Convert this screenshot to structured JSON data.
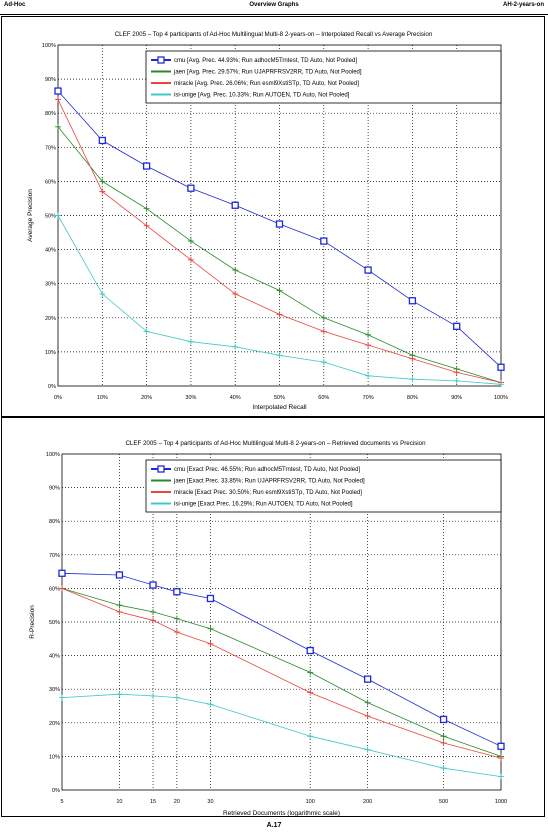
{
  "header": {
    "left": "Ad-Hoc",
    "center": "Overview Graphs",
    "right": "AH-2-years-on"
  },
  "footer": "A.17",
  "series_colors": {
    "cmu": "#1e2ad8",
    "jaen": "#2a8a2a",
    "miracle": "#e8463c",
    "isi-unige": "#40c8c8"
  },
  "chart_data": [
    {
      "type": "line",
      "title": "CLEF 2005 – Top 4 participants of Ad-Hoc Multilingual Multi-8 2-years-on – Interpolated Recall vs Average Precision",
      "xlabel": "Interpolated Recall",
      "ylabel": "Average Precision",
      "x_scale": "linear",
      "x": [
        0,
        10,
        20,
        30,
        40,
        50,
        60,
        70,
        80,
        90,
        100
      ],
      "x_ticks": [
        "0%",
        "10%",
        "20%",
        "30%",
        "40%",
        "50%",
        "60%",
        "70%",
        "80%",
        "90%",
        "100%"
      ],
      "xlim": [
        0,
        100
      ],
      "y_ticks": [
        "0%",
        "10%",
        "20%",
        "30%",
        "40%",
        "50%",
        "60%",
        "70%",
        "80%",
        "90%",
        "100%"
      ],
      "ylim": [
        0,
        100
      ],
      "grid": true,
      "legend_position": "top-right",
      "series": [
        {
          "name": "cmu [Avg. Prec. 44.93%; Run adhocM5Trntest, TD Auto, Not Pooled]",
          "color_key": "cmu",
          "values": [
            86.5,
            72,
            64.5,
            58,
            53,
            47.5,
            42.5,
            34,
            25,
            17.5,
            5.5
          ]
        },
        {
          "name": "jaen [Avg. Prec. 29.57%; Run UJAPRFRSV2RR, TD Auto, Not Pooled]",
          "color_key": "jaen",
          "values": [
            76,
            60,
            52,
            42.5,
            34,
            28,
            20,
            15,
            9,
            5,
            1
          ]
        },
        {
          "name": "miracle [Avg. Prec. 26.06%; Run esml9XstiSTp, TD Auto, Not Pooled]",
          "color_key": "miracle",
          "values": [
            84,
            57,
            47,
            37,
            27,
            21,
            16,
            12,
            8,
            4,
            1
          ]
        },
        {
          "name": "isi-unige [Avg. Prec. 10.33%; Run AUTOEN, TD Auto, Not Pooled]",
          "color_key": "isi-unige",
          "values": [
            50,
            27,
            16,
            13,
            11.5,
            9,
            7,
            3,
            2,
            1.5,
            0.5
          ]
        }
      ]
    },
    {
      "type": "line",
      "title": "CLEF 2005 – Top 4 participants of Ad-Hoc Multilingual Multi-8 2-years-on – Retrieved documents vs Precision",
      "xlabel": "Retrieved Documents (logarithmic scale)",
      "ylabel": "R-Precision",
      "x_scale": "log",
      "x": [
        5,
        10,
        15,
        20,
        30,
        100,
        200,
        500,
        1000
      ],
      "x_ticks": [
        "5",
        "10",
        "15",
        "20",
        "30",
        "100",
        "200",
        "500",
        "1000"
      ],
      "xlim": [
        5,
        1000
      ],
      "y_ticks": [
        "0%",
        "10%",
        "20%",
        "30%",
        "40%",
        "50%",
        "60%",
        "70%",
        "80%",
        "90%",
        "100%"
      ],
      "ylim": [
        0,
        100
      ],
      "grid": true,
      "legend_position": "top-right",
      "series": [
        {
          "name": "cmu [Exact Prec. 46.55%; Run adhocM5Trntest, TD Auto, Not Pooled]",
          "color_key": "cmu",
          "values": [
            64.5,
            64,
            61,
            59,
            57,
            41.5,
            33,
            21,
            13
          ]
        },
        {
          "name": "jaen [Exact Prec. 33.85%; Run UJAPRFRSV2RR, TD Auto, Not Pooled]",
          "color_key": "jaen",
          "values": [
            60,
            55,
            53,
            51,
            48,
            35,
            26,
            16,
            10
          ]
        },
        {
          "name": "miracle [Exact Prec. 30.50%; Run esml9XstiSTp, TD Auto, Not Pooled]",
          "color_key": "miracle",
          "values": [
            60,
            53,
            50.5,
            47,
            43.5,
            29,
            22,
            14,
            9.5
          ]
        },
        {
          "name": "isi-unige [Exact Prec. 16.29%; Run AUTOEN, TD Auto, Not Pooled]",
          "color_key": "isi-unige",
          "values": [
            27.5,
            28.5,
            28,
            27.5,
            25.5,
            16,
            12,
            6.5,
            4
          ]
        }
      ]
    }
  ]
}
